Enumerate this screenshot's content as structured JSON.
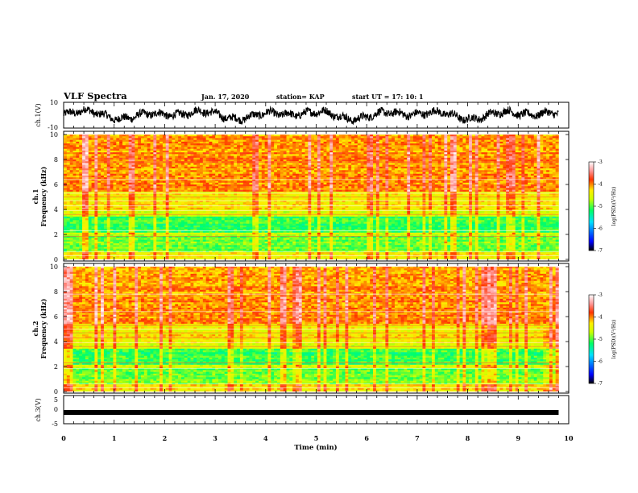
{
  "header": {
    "title": "VLF Spectra",
    "date": "Jan. 17, 2020",
    "station": "station= KAP",
    "start": "start  UT  =   17: 10: 1"
  },
  "chart_data": [
    {
      "type": "line",
      "panel": "ch1-waveform",
      "ylabel": "ch.1(V)",
      "ylim": [
        -10,
        10
      ],
      "yticks": [
        "10",
        "-10"
      ],
      "xlim": [
        0,
        10
      ],
      "color": "#000000"
    },
    {
      "type": "heatmap",
      "panel": "ch1-spectrogram",
      "ylabel_channel": "ch.1",
      "ylabel": "Frequency (kHz)",
      "ylim": [
        0,
        10
      ],
      "yticks": [
        "0",
        "2",
        "4",
        "6",
        "8",
        "10"
      ],
      "xlim": [
        0,
        9.8
      ],
      "colorbar": {
        "label": "log(PSD)(V²/Hz)",
        "range": [
          -7,
          -3
        ],
        "ticks": [
          "-3",
          "-4",
          "-5",
          "-6",
          "-7"
        ]
      }
    },
    {
      "type": "heatmap",
      "panel": "ch2-spectrogram",
      "ylabel_channel": "ch.2",
      "ylabel": "Frequency (kHz)",
      "ylim": [
        0,
        10
      ],
      "yticks": [
        "0",
        "2",
        "4",
        "6",
        "8",
        "10"
      ],
      "xlim": [
        0,
        9.8
      ],
      "colorbar": {
        "label": "log(PSD)(V²/Hz)",
        "range": [
          -7,
          -3
        ],
        "ticks": [
          "-3",
          "-4",
          "-5",
          "-6",
          "-7"
        ]
      }
    },
    {
      "type": "line",
      "panel": "ch3-waveform",
      "ylabel": "ch.3(V)",
      "ylim": [
        -5,
        5
      ],
      "yticks": [
        "5",
        "0",
        "-5"
      ],
      "xlim": [
        0,
        10
      ],
      "level": -1,
      "color": "#000000"
    }
  ],
  "xaxis": {
    "label": "Time (min)",
    "ticks": [
      "0",
      "1",
      "2",
      "3",
      "4",
      "5",
      "6",
      "7",
      "8",
      "9",
      "10"
    ],
    "range": [
      0,
      10
    ]
  },
  "colors": {
    "stops": [
      "#000000",
      "#0000ff",
      "#00e0ff",
      "#00ff66",
      "#ccff00",
      "#ffee00",
      "#ff3300",
      "#ffffff"
    ]
  }
}
